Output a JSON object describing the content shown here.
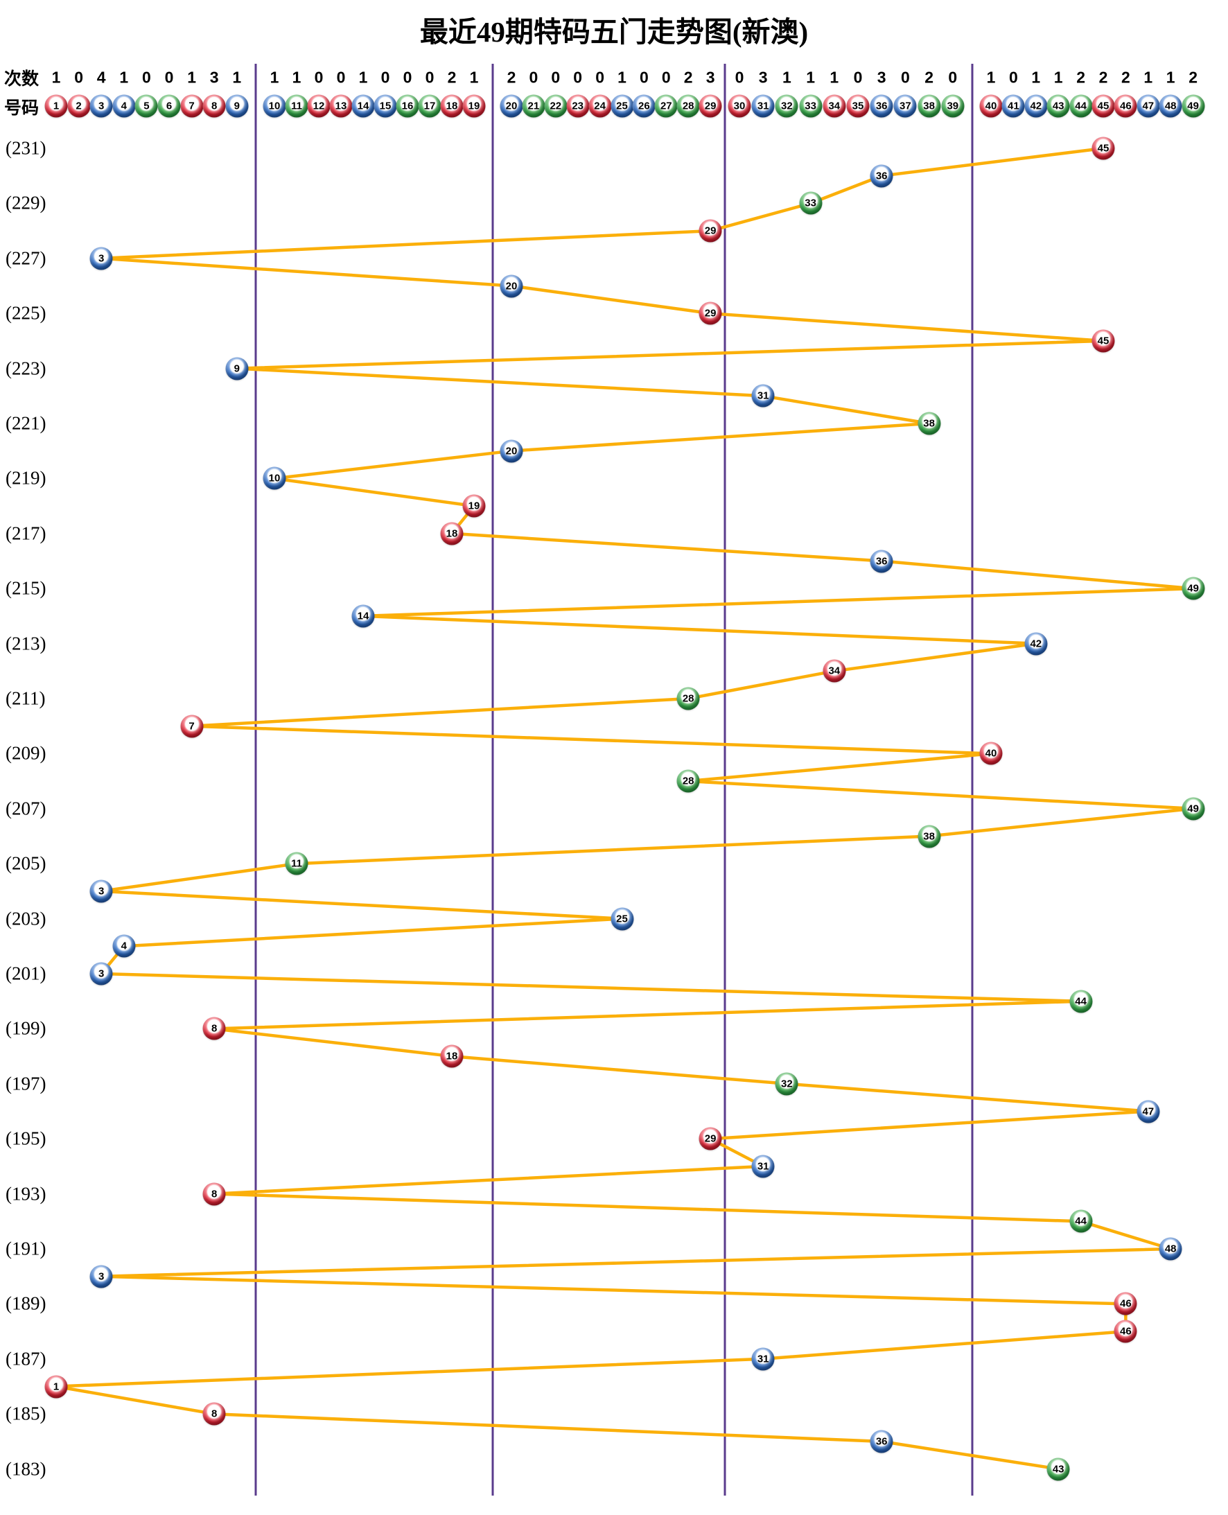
{
  "title": "最近49期特码五门走势图(新澳)",
  "header": {
    "counts_label": "次数",
    "numbers_label": "号码",
    "counts": [
      1,
      0,
      4,
      1,
      0,
      0,
      1,
      3,
      1,
      1,
      1,
      0,
      0,
      1,
      0,
      0,
      0,
      2,
      1,
      2,
      0,
      0,
      0,
      0,
      1,
      0,
      0,
      2,
      3,
      0,
      3,
      1,
      1,
      1,
      0,
      3,
      0,
      2,
      0,
      1,
      0,
      1,
      1,
      2,
      2,
      2,
      1,
      1,
      2
    ],
    "numbers": [
      1,
      2,
      3,
      4,
      5,
      6,
      7,
      8,
      9,
      10,
      11,
      12,
      13,
      14,
      15,
      16,
      17,
      18,
      19,
      20,
      21,
      22,
      23,
      24,
      25,
      26,
      27,
      28,
      29,
      30,
      31,
      32,
      33,
      34,
      35,
      36,
      37,
      38,
      39,
      40,
      41,
      42,
      43,
      44,
      45,
      46,
      47,
      48,
      49
    ]
  },
  "period_labels": [
    "(231)",
    "(229)",
    "(227)",
    "(225)",
    "(223)",
    "(221)",
    "(219)",
    "(217)",
    "(215)",
    "(213)",
    "(211)",
    "(209)",
    "(207)",
    "(205)",
    "(203)",
    "(201)",
    "(199)",
    "(197)",
    "(195)",
    "(193)",
    "(191)",
    "(189)",
    "(187)",
    "(185)",
    "(183)"
  ],
  "chart_data": {
    "type": "line",
    "title": "最近49期特码五门走势图(新澳)",
    "xlabel": "号码",
    "ylabel": "次数",
    "x_range": [
      1,
      49
    ],
    "period_range_top_to_bottom": [
      231,
      183
    ],
    "group_boundaries_after": [
      9,
      19,
      29,
      39
    ],
    "grid": "off",
    "points": [
      {
        "period": 231,
        "number": 45
      },
      {
        "period": 230,
        "number": 36
      },
      {
        "period": 229,
        "number": 33
      },
      {
        "period": 228,
        "number": 29
      },
      {
        "period": 227,
        "number": 3
      },
      {
        "period": 226,
        "number": 20
      },
      {
        "period": 225,
        "number": 29
      },
      {
        "period": 224,
        "number": 45
      },
      {
        "period": 223,
        "number": 9
      },
      {
        "period": 222,
        "number": 31
      },
      {
        "period": 221,
        "number": 38
      },
      {
        "period": 220,
        "number": 20
      },
      {
        "period": 219,
        "number": 10
      },
      {
        "period": 218,
        "number": 19
      },
      {
        "period": 217,
        "number": 18
      },
      {
        "period": 216,
        "number": 36
      },
      {
        "period": 215,
        "number": 49
      },
      {
        "period": 214,
        "number": 14
      },
      {
        "period": 213,
        "number": 42
      },
      {
        "period": 212,
        "number": 34
      },
      {
        "period": 211,
        "number": 28
      },
      {
        "period": 210,
        "number": 7
      },
      {
        "period": 209,
        "number": 40
      },
      {
        "period": 208,
        "number": 28
      },
      {
        "period": 207,
        "number": 49
      },
      {
        "period": 206,
        "number": 38
      },
      {
        "period": 205,
        "number": 11
      },
      {
        "period": 204,
        "number": 3
      },
      {
        "period": 203,
        "number": 25
      },
      {
        "period": 202,
        "number": 4
      },
      {
        "period": 201,
        "number": 3
      },
      {
        "period": 200,
        "number": 44
      },
      {
        "period": 199,
        "number": 8
      },
      {
        "period": 198,
        "number": 18
      },
      {
        "period": 197,
        "number": 32
      },
      {
        "period": 196,
        "number": 47
      },
      {
        "period": 195,
        "number": 29
      },
      {
        "period": 194,
        "number": 31
      },
      {
        "period": 193,
        "number": 8
      },
      {
        "period": 192,
        "number": 44
      },
      {
        "period": 191,
        "number": 48
      },
      {
        "period": 190,
        "number": 3
      },
      {
        "period": 189,
        "number": 46
      },
      {
        "period": 188,
        "number": 46
      },
      {
        "period": 187,
        "number": 31
      },
      {
        "period": 186,
        "number": 1
      },
      {
        "period": 185,
        "number": 8
      },
      {
        "period": 184,
        "number": 36
      },
      {
        "period": 183,
        "number": 43
      }
    ]
  },
  "ball_colors": {
    "red": [
      1,
      2,
      7,
      8,
      12,
      13,
      18,
      19,
      23,
      24,
      29,
      30,
      34,
      35,
      40,
      45,
      46
    ],
    "blue": [
      3,
      4,
      9,
      10,
      14,
      15,
      20,
      25,
      26,
      31,
      36,
      37,
      41,
      42,
      47,
      48
    ],
    "green": [
      5,
      6,
      11,
      16,
      17,
      21,
      22,
      27,
      28,
      32,
      33,
      38,
      39,
      43,
      44,
      49
    ]
  },
  "colors": {
    "background": "#FFFFFF",
    "text": "#000000",
    "trend_line": "#FBAF0A",
    "divider": "#5A3B8C",
    "red_ball": "#D51F30",
    "blue_ball": "#2A65BA",
    "green_ball": "#2E9E43"
  }
}
